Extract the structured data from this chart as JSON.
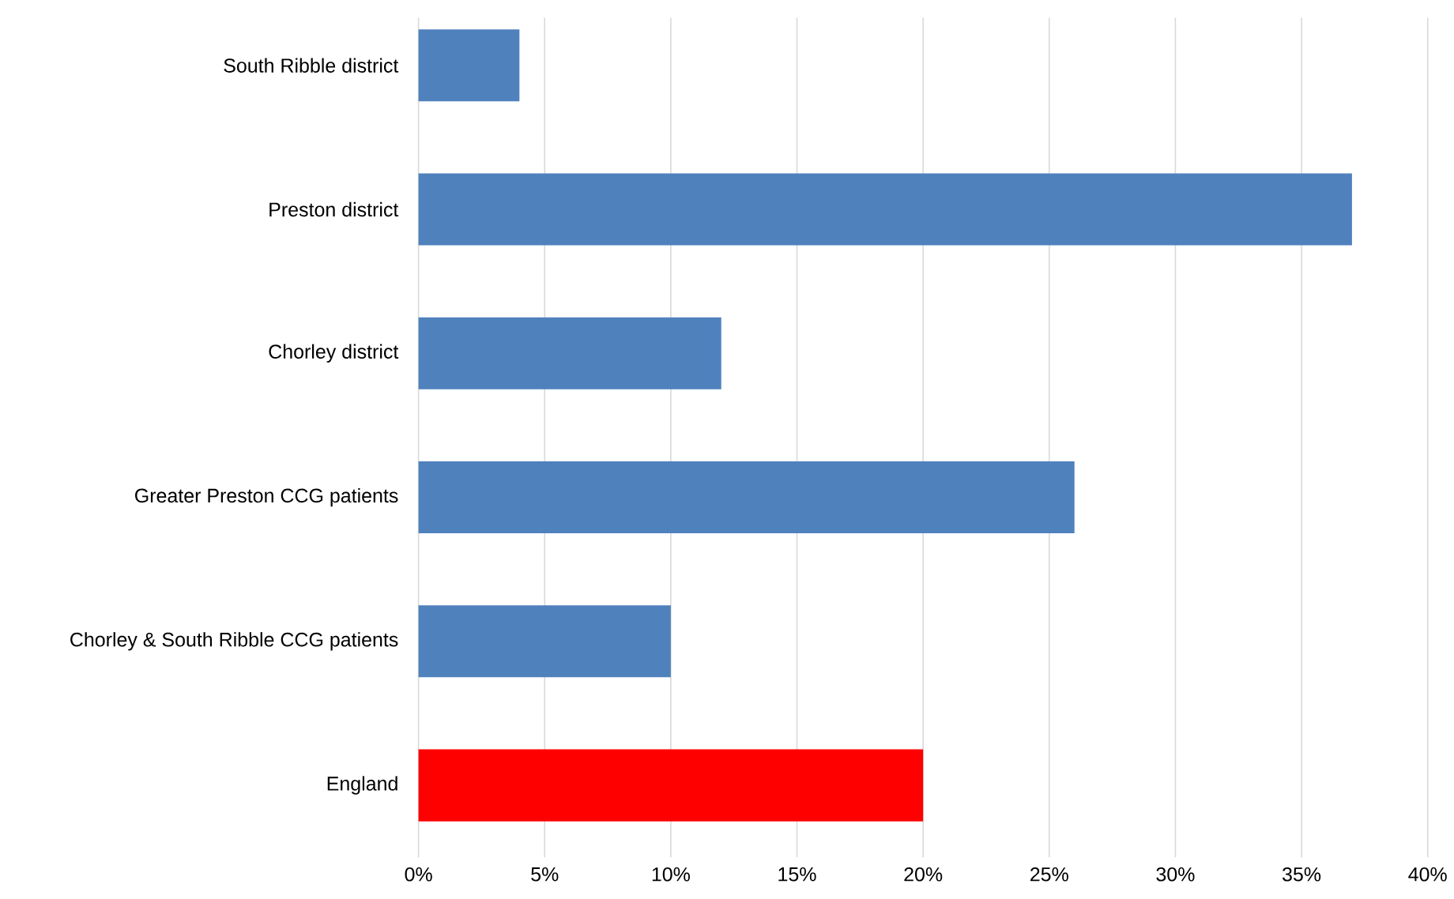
{
  "chart_data": {
    "type": "bar",
    "orientation": "horizontal",
    "categories": [
      "South Ribble district",
      "Preston district",
      "Chorley  district",
      "Greater Preston CCG patients",
      "Chorley & South Ribble CCG patients",
      "England"
    ],
    "values": [
      4,
      37,
      12,
      26,
      10,
      20
    ],
    "colors": [
      "#4f81bd",
      "#4f81bd",
      "#4f81bd",
      "#4f81bd",
      "#4f81bd",
      "#ff0000"
    ],
    "xlim": [
      0,
      40
    ],
    "xticks": [
      {
        "value": 0,
        "label": "0%"
      },
      {
        "value": 5,
        "label": "5%"
      },
      {
        "value": 10,
        "label": "10%"
      },
      {
        "value": 15,
        "label": "15%"
      },
      {
        "value": 20,
        "label": "20%"
      },
      {
        "value": 25,
        "label": "25%"
      },
      {
        "value": 30,
        "label": "30%"
      },
      {
        "value": 35,
        "label": "35%"
      },
      {
        "value": 40,
        "label": "40%"
      }
    ],
    "grid": "x"
  }
}
